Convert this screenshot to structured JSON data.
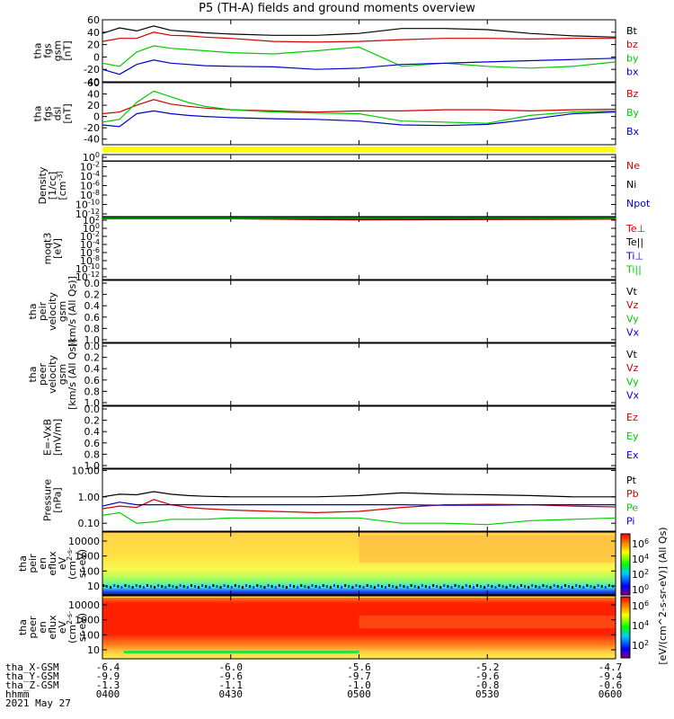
{
  "title": "P5 (TH-A) fields and ground moments overview",
  "date_label": "2021 May 27",
  "colors": {
    "black": "#000000",
    "red": "#d00000",
    "green": "#00cc00",
    "blue": "#0000cc",
    "yellow": "#ffff00"
  },
  "x_axis": {
    "ticks": [
      0,
      30,
      60,
      90,
      120
    ],
    "rows": [
      {
        "label": "tha_X-GSM",
        "values": [
          "-6.4",
          "-6.0",
          "-5.6",
          "-5.2",
          "-4.7"
        ]
      },
      {
        "label": "tha_Y-GSM",
        "values": [
          "-9.9",
          "-9.6",
          "-9.7",
          "-9.6",
          "-9.4"
        ]
      },
      {
        "label": "tha_Z-GSM",
        "values": [
          "-1.3",
          "-1.1",
          "-1.0",
          "-0.8",
          "-0.6"
        ]
      },
      {
        "label": "hhmm",
        "values": [
          "0400",
          "0430",
          "0500",
          "0530",
          "0600"
        ]
      }
    ]
  },
  "colorbar": {
    "label": "[eV/(cm^2-s-sr-eV)] (All Qs)",
    "top_ticks": [
      "10^6",
      "10^4",
      "10^2",
      "10^0"
    ],
    "bottom_ticks": [
      "10^6",
      "10^4",
      "10^2"
    ]
  },
  "chart_data": [
    {
      "id": "fgs-gsm",
      "type": "line",
      "ylabel": [
        "tha",
        "fgs",
        "gsm",
        "[nT]"
      ],
      "ylim": [
        -40,
        60
      ],
      "yticks": [
        -40,
        -20,
        0,
        20,
        40,
        60
      ],
      "x": [
        0,
        4,
        8,
        12,
        16,
        20,
        24,
        30,
        40,
        50,
        60,
        70,
        80,
        90,
        100,
        110,
        120
      ],
      "series": [
        {
          "name": "Bt",
          "color": "black",
          "values": [
            38,
            47,
            42,
            50,
            43,
            41,
            39,
            37,
            35,
            35,
            38,
            46,
            46,
            44,
            38,
            34,
            32
          ]
        },
        {
          "name": "bz",
          "color": "red",
          "values": [
            25,
            30,
            30,
            40,
            35,
            34,
            32,
            30,
            25,
            24,
            25,
            28,
            30,
            30,
            29,
            30,
            30
          ]
        },
        {
          "name": "by",
          "color": "green",
          "values": [
            -10,
            -15,
            8,
            18,
            14,
            12,
            10,
            7,
            5,
            10,
            16,
            -15,
            -10,
            -15,
            -18,
            -15,
            -8
          ]
        },
        {
          "name": "bx",
          "color": "blue",
          "values": [
            -20,
            -28,
            -12,
            -5,
            -10,
            -12,
            -14,
            -15,
            -16,
            -20,
            -18,
            -12,
            -10,
            -8,
            -6,
            -4,
            -2
          ]
        }
      ]
    },
    {
      "id": "fgs-dsl",
      "type": "line",
      "ylabel": [
        "tha",
        "fgs",
        "dsl",
        "[nT]"
      ],
      "ylim": [
        -50,
        60
      ],
      "yticks": [
        -40,
        -20,
        0,
        20,
        40,
        60
      ],
      "x": [
        0,
        4,
        8,
        12,
        16,
        20,
        24,
        30,
        40,
        50,
        60,
        70,
        80,
        90,
        100,
        110,
        120
      ],
      "series": [
        {
          "name": "Bz",
          "color": "red",
          "values": [
            5,
            8,
            20,
            30,
            22,
            18,
            15,
            12,
            10,
            8,
            10,
            10,
            12,
            12,
            10,
            12,
            13
          ]
        },
        {
          "name": "By",
          "color": "green",
          "values": [
            -10,
            -5,
            25,
            45,
            35,
            25,
            18,
            12,
            8,
            6,
            5,
            -8,
            -10,
            -12,
            2,
            8,
            10
          ]
        },
        {
          "name": "Bx",
          "color": "blue",
          "values": [
            -15,
            -18,
            5,
            10,
            5,
            2,
            0,
            -2,
            -4,
            -5,
            -8,
            -15,
            -16,
            -14,
            -5,
            5,
            8
          ]
        }
      ]
    },
    {
      "id": "density",
      "type": "line",
      "ylabel": [
        "Density",
        "[1/cc]",
        "[cm^-3]"
      ],
      "ylim_log": [
        -12,
        2
      ],
      "yticks": [
        "10^0",
        "10^-2",
        "10^-4",
        "10^-6",
        "10^-8",
        "10^-10",
        "10^-12"
      ],
      "x": [
        0,
        120
      ],
      "series": [
        {
          "name": "Ne",
          "color": "red",
          "log_values": [
            0.5,
            0.5
          ]
        },
        {
          "name": "Ni",
          "color": "black",
          "log_values": [
            0.55,
            0.55
          ]
        },
        {
          "name": "Npot",
          "color": "blue",
          "log_values": []
        }
      ]
    },
    {
      "id": "temperature",
      "type": "line",
      "ylabel": [
        "moqt3",
        "[eV]"
      ],
      "ylim_log": [
        -12,
        3
      ],
      "yticks": [
        "10^2",
        "10^0",
        "10^-2",
        "10^-4",
        "10^-6",
        "10^-8",
        "10^-10",
        "10^-12"
      ],
      "x": [
        0,
        30,
        60,
        90,
        120
      ],
      "series": [
        {
          "name": "Te⊥",
          "color": "red",
          "log_values": [
            2.7,
            2.7,
            2.4,
            2.5,
            2.6
          ]
        },
        {
          "name": "Te||",
          "color": "black",
          "log_values": [
            2.8,
            2.8,
            2.6,
            2.7,
            2.8
          ]
        },
        {
          "name": "Ti⊥",
          "color": "blue",
          "log_values": [
            2.9,
            2.9,
            2.9,
            2.9,
            2.9
          ]
        },
        {
          "name": "Ti||",
          "color": "green",
          "log_values": [
            2.85,
            2.85,
            2.85,
            2.85,
            2.85
          ]
        }
      ]
    },
    {
      "id": "peir-velocity",
      "type": "line",
      "ylabel": [
        "tha",
        "peir",
        "velocity",
        "gsm",
        "[km/s (All Qs)]"
      ],
      "ylim": [
        0,
        1
      ],
      "yticks": [
        "0.0",
        "0.2",
        "0.4",
        "0.6",
        "0.8",
        "1.0"
      ],
      "series": [
        {
          "name": "Vt",
          "color": "black",
          "values": []
        },
        {
          "name": "Vz",
          "color": "red",
          "values": []
        },
        {
          "name": "Vy",
          "color": "green",
          "values": []
        },
        {
          "name": "Vx",
          "color": "blue",
          "values": []
        }
      ]
    },
    {
      "id": "peer-velocity",
      "type": "line",
      "ylabel": [
        "tha",
        "peer",
        "velocity",
        "gsm",
        "[km/s (All Qs)]"
      ],
      "ylim": [
        0,
        1
      ],
      "yticks": [
        "0.0",
        "0.2",
        "0.4",
        "0.6",
        "0.8",
        "1.0"
      ],
      "series": [
        {
          "name": "Vt",
          "color": "black",
          "values": []
        },
        {
          "name": "Vz",
          "color": "red",
          "values": []
        },
        {
          "name": "Vy",
          "color": "green",
          "values": []
        },
        {
          "name": "Vx",
          "color": "blue",
          "values": []
        }
      ]
    },
    {
      "id": "efield",
      "type": "line",
      "ylabel": [
        "E=-VxB",
        "[mV/m]"
      ],
      "ylim": [
        0,
        1
      ],
      "yticks": [
        "0.0",
        "0.2",
        "0.4",
        "0.6",
        "0.8",
        "1.0"
      ],
      "series": [
        {
          "name": "Ez",
          "color": "red",
          "values": []
        },
        {
          "name": "Ey",
          "color": "green",
          "values": []
        },
        {
          "name": "Ex",
          "color": "blue",
          "values": []
        }
      ]
    },
    {
      "id": "pressure",
      "type": "line",
      "ylabel": [
        "Pressure",
        "[nPa]"
      ],
      "ylim_log": [
        -1.3,
        1.05
      ],
      "yticks": [
        "10.00",
        "1.00",
        "0.10"
      ],
      "x": [
        0,
        4,
        8,
        12,
        16,
        20,
        24,
        30,
        40,
        50,
        60,
        70,
        80,
        90,
        100,
        110,
        120
      ],
      "series": [
        {
          "name": "Pt",
          "color": "black",
          "log_values": [
            0.0,
            0.1,
            0.08,
            0.2,
            0.1,
            0.05,
            0.02,
            0.0,
            0.0,
            0.0,
            0.05,
            0.15,
            0.1,
            0.08,
            0.05,
            0.0,
            0.0
          ]
        },
        {
          "name": "Pb",
          "color": "red",
          "log_values": [
            -0.45,
            -0.35,
            -0.4,
            -0.1,
            -0.3,
            -0.4,
            -0.45,
            -0.5,
            -0.55,
            -0.6,
            -0.55,
            -0.4,
            -0.3,
            -0.28,
            -0.3,
            -0.35,
            -0.38
          ]
        },
        {
          "name": "Pe",
          "color": "green",
          "log_values": [
            -0.7,
            -0.6,
            -1.0,
            -0.95,
            -0.85,
            -0.85,
            -0.85,
            -0.8,
            -0.8,
            -0.8,
            -0.8,
            -1.0,
            -1.0,
            -1.05,
            -0.9,
            -0.85,
            -0.8
          ]
        },
        {
          "name": "Pi",
          "color": "blue",
          "log_values": [
            -0.35,
            -0.2,
            -0.3,
            -0.3,
            -0.3,
            -0.3,
            -0.3,
            -0.3,
            -0.3,
            -0.3,
            -0.3,
            -0.3,
            -0.32,
            -0.32,
            -0.3,
            -0.3,
            -0.3
          ]
        }
      ]
    },
    {
      "id": "peir-spectrogram",
      "type": "heatmap",
      "ylabel": [
        "tha",
        "peir",
        "en",
        "eflux",
        "eV",
        "(cm^2-s-",
        "sr-eV)"
      ],
      "yticks": [
        "10000",
        "1000",
        "100",
        "10"
      ]
    },
    {
      "id": "peer-spectrogram",
      "type": "heatmap",
      "ylabel": [
        "tha",
        "peer",
        "en",
        "eflux",
        "eV",
        "(cm^2-s-",
        "sr-eV)"
      ],
      "yticks": [
        "10000",
        "1000",
        "100",
        "10"
      ]
    }
  ]
}
